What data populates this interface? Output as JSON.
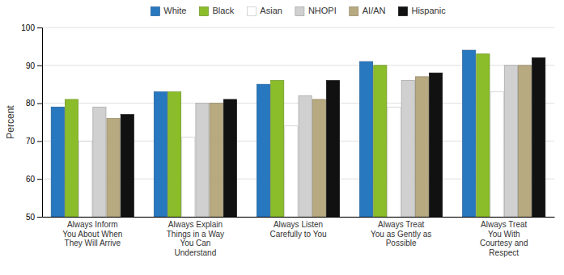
{
  "chart_data": {
    "type": "bar",
    "categories": [
      "Always Inform\nYou About When\nThey Will Arrive",
      "Always Explain\nThings in a Way\nYou Can\nUnderstand",
      "Always Listen\nCarefully to You",
      "Always Treat\nYou as Gently as\nPossible",
      "Always Treat\nYou With\nCourtesy and\nRespect"
    ],
    "series": [
      {
        "name": "White",
        "color": "#2878C0",
        "values": [
          79,
          83,
          85,
          91,
          94
        ]
      },
      {
        "name": "Black",
        "color": "#8BBD2A",
        "values": [
          81,
          83,
          86,
          90,
          93
        ]
      },
      {
        "name": "Asian",
        "color": "#FFFFFF",
        "values": [
          70,
          71,
          74,
          79,
          83
        ]
      },
      {
        "name": "NHOPI",
        "color": "#D0D0D0",
        "values": [
          79,
          80,
          82,
          86,
          90
        ]
      },
      {
        "name": "AI/AN",
        "color": "#B8AA80",
        "values": [
          76,
          80,
          81,
          87,
          90
        ]
      },
      {
        "name": "Hispanic",
        "color": "#111111",
        "values": [
          77,
          81,
          86,
          88,
          92
        ]
      }
    ],
    "ylabel": "Percent",
    "ylim": [
      50,
      100
    ],
    "yticks": [
      50,
      60,
      70,
      80,
      90,
      100
    ],
    "grid": true,
    "legend": "top"
  }
}
